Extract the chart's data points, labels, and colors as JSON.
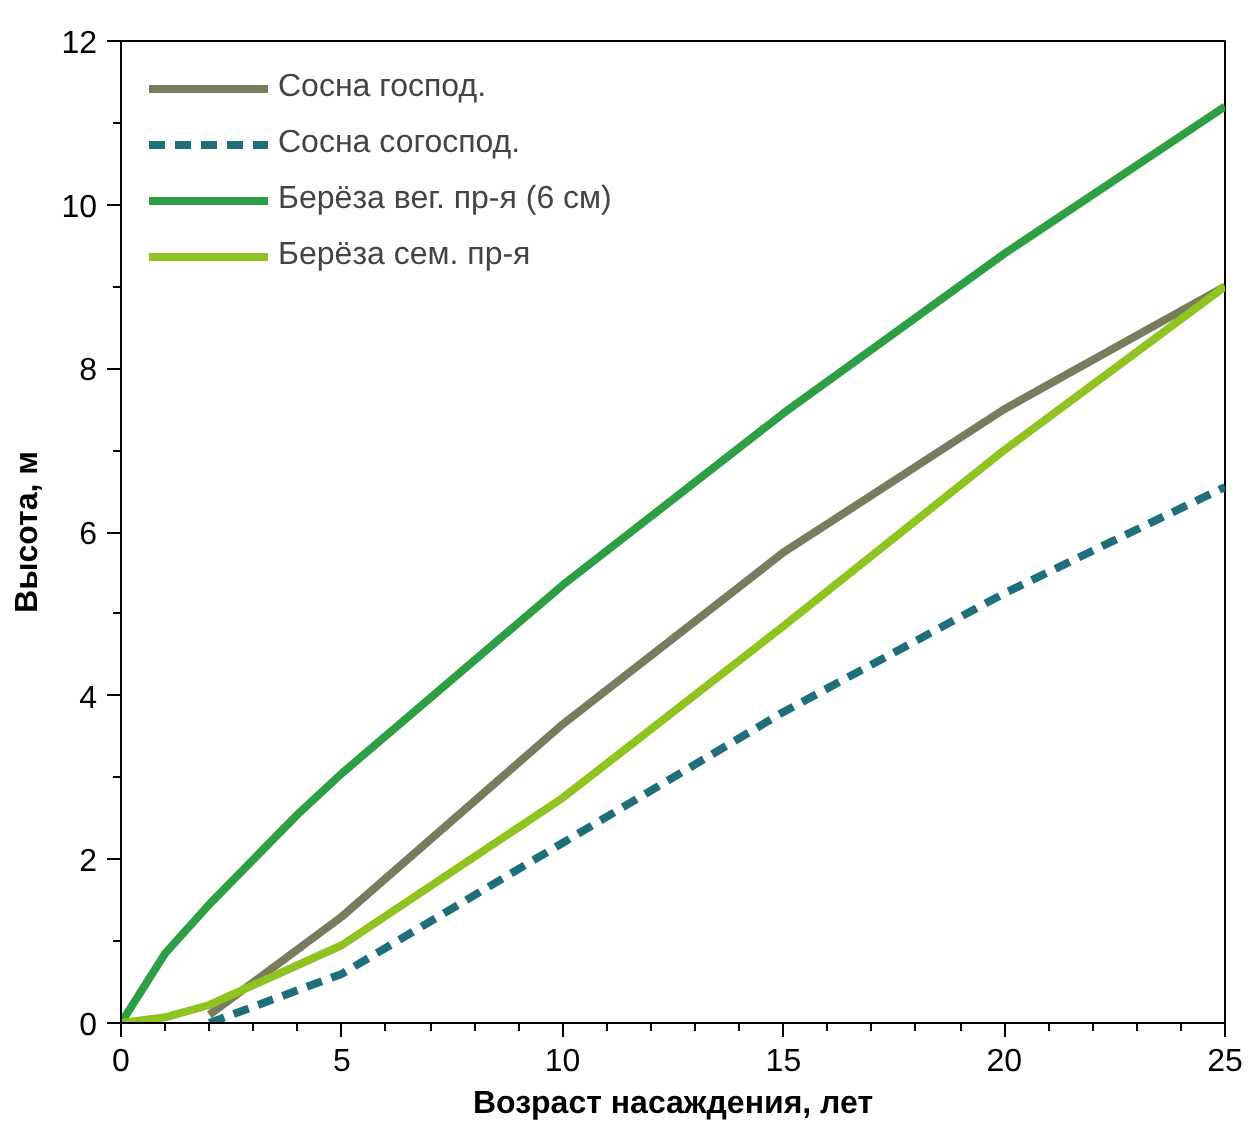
{
  "chart_data": {
    "type": "line",
    "xlabel": "Возраст насаждения, лет",
    "ylabel": "Высота, м",
    "xlim": [
      0,
      25
    ],
    "ylim": [
      0,
      12
    ],
    "xticks": [
      0,
      {
        "value": 1,
        "label": null
      },
      {
        "value": 2,
        "label": null
      },
      {
        "value": 3,
        "label": null
      },
      {
        "value": 4,
        "label": null
      },
      5,
      {
        "value": 6,
        "label": null
      },
      {
        "value": 7,
        "label": null
      },
      {
        "value": 8,
        "label": null
      },
      {
        "value": 9,
        "label": null
      },
      10,
      {
        "value": 11,
        "label": null
      },
      {
        "value": 12,
        "label": null
      },
      {
        "value": 13,
        "label": null
      },
      {
        "value": 14,
        "label": null
      },
      15,
      {
        "value": 16,
        "label": null
      },
      {
        "value": 17,
        "label": null
      },
      {
        "value": 18,
        "label": null
      },
      {
        "value": 19,
        "label": null
      },
      20,
      {
        "value": 21,
        "label": null
      },
      {
        "value": 22,
        "label": null
      },
      {
        "value": 23,
        "label": null
      },
      {
        "value": 24,
        "label": null
      },
      25
    ],
    "yticks": [
      0,
      {
        "value": 1,
        "label": null
      },
      2,
      {
        "value": 3,
        "label": null
      },
      4,
      {
        "value": 5,
        "label": null
      },
      6,
      {
        "value": 7,
        "label": null
      },
      8,
      {
        "value": 9,
        "label": null
      },
      10,
      {
        "value": 11,
        "label": null
      },
      12
    ],
    "grid": false,
    "legend": "top left",
    "marker": "none",
    "series": [
      {
        "name": "Сосна господ.",
        "color": "#777c5c",
        "line_style": "solid",
        "x": [
          2,
          5,
          10,
          15,
          20,
          25
        ],
        "values": [
          0.1,
          1.3,
          3.65,
          5.75,
          7.5,
          9.0
        ]
      },
      {
        "name": "Сосна согоспод.",
        "color": "#1f6f7a",
        "line_style": "dashed",
        "x": [
          2,
          5,
          10,
          15,
          20,
          25
        ],
        "values": [
          0,
          0.6,
          2.2,
          3.8,
          5.25,
          6.55
        ]
      },
      {
        "name": "Берёза вег. пр-я (6 см)",
        "color": "#2e9e44",
        "line_style": "solid",
        "x": [
          0,
          1,
          2,
          3,
          4,
          5,
          10,
          15,
          20,
          25
        ],
        "values": [
          0,
          0.85,
          1.45,
          2.0,
          2.55,
          3.05,
          5.35,
          7.45,
          9.4,
          11.2
        ]
      },
      {
        "name": "Берёза сем. пр-я",
        "color": "#8fc31f",
        "line_style": "solid",
        "x": [
          0,
          1,
          2,
          5,
          10,
          15,
          20,
          25
        ],
        "values": [
          0,
          0.07,
          0.22,
          0.95,
          2.75,
          4.85,
          7.0,
          9.0
        ]
      }
    ]
  }
}
